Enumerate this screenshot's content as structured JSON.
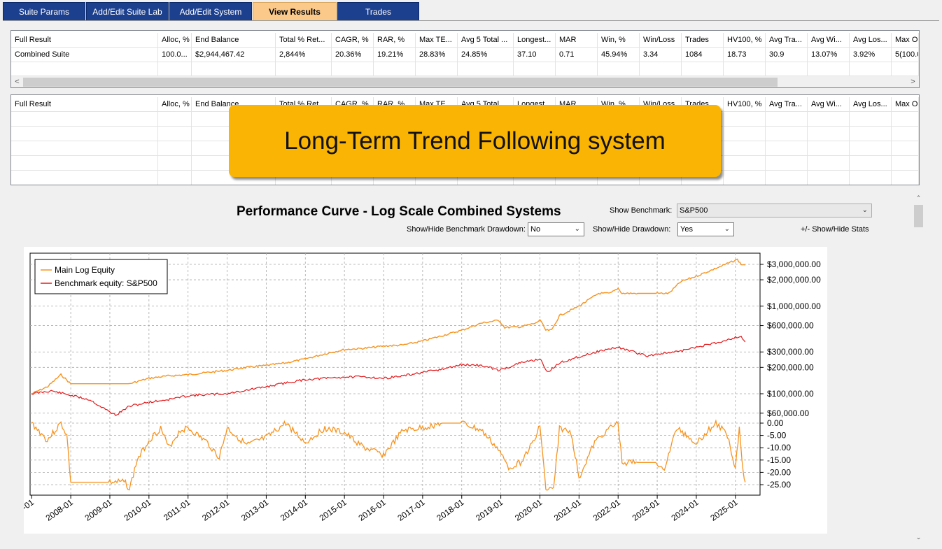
{
  "tabs": [
    {
      "label": "Suite Params"
    },
    {
      "label": "Add/Edit Suite Lab"
    },
    {
      "label": "Add/Edit System"
    },
    {
      "label": "View Results"
    },
    {
      "label": "Trades"
    }
  ],
  "grid1": {
    "headers": [
      "Full Result",
      "Alloc, %",
      "End Balance",
      "Total % Ret...",
      "CAGR, %",
      "RAR, %",
      "Max TE...",
      "Avg 5 Total ...",
      "Longest...",
      "MAR",
      "Win, %",
      "Win/Loss",
      "Trades",
      "HV100, %",
      "Avg Tra...",
      "Avg Wi...",
      "Avg Los...",
      "Max Op"
    ],
    "row": [
      "Combined Suite",
      "100.0...",
      "$2,944,467.42",
      "2,844%",
      "20.36%",
      "19.21%",
      "28.83%",
      "24.85%",
      "37.10",
      "0.71",
      "45.94%",
      "3.34",
      "1084",
      "18.73",
      "30.9",
      "13.07%",
      "3.92%",
      "5(100.0"
    ],
    "scroll_left": "<",
    "scroll_right": ">"
  },
  "grid2": {
    "headers": [
      "Full Result",
      "Alloc, %",
      "End Balance",
      "Total % Ret...",
      "CAGR, %",
      "RAR, %",
      "Max TE...",
      "Avg 5 Total ...",
      "Longest...",
      "MAR",
      "Win, %",
      "Win/Loss",
      "Trades",
      "HV100, %",
      "Avg Tra...",
      "Avg Wi...",
      "Avg Los...",
      "Max Op"
    ]
  },
  "banner": {
    "text": "Long-Term Trend Following system"
  },
  "chart_panel": {
    "title": "Performance Curve - Log Scale Combined Systems",
    "show_benchmark_label": "Show Benchmark:",
    "show_benchmark_value": "S&P500",
    "benchmark_drawdown_label": "Show/Hide Benchmark Drawdown:",
    "benchmark_drawdown_value": "No",
    "drawdown_label": "Show/Hide Drawdown:",
    "drawdown_value": "Yes",
    "stats_toggle": "+/- Show/Hide Stats"
  },
  "colors": {
    "equity": "#f7931e",
    "benchmark": "#e31a1c",
    "drawdown": "#f7931e",
    "tab": "#1c3f8e",
    "tab_active": "#fbc98a",
    "banner": "#f9b404"
  },
  "chart_data": {
    "type": "line",
    "title": "Performance Curve - Log Scale Combined Systems",
    "y_scale": "log",
    "legend_position": "top-left",
    "grid": true,
    "legend": [
      "Main Log Equity",
      "Benchmark equity: S&P500"
    ],
    "x_tick_labels": [
      "-01",
      "2008-01",
      "2009-01",
      "2010-01",
      "2011-01",
      "2012-01",
      "2013-01",
      "2014-01",
      "2015-01",
      "2016-01",
      "2017-01",
      "2018-01",
      "2019-01",
      "2020-01",
      "2021-01",
      "2022-01",
      "2023-01",
      "2024-01",
      "2025-01"
    ],
    "equity_y_ticks": [
      "$3,000,000.00",
      "$2,000,000.00",
      "$1,000,000.00",
      "$600,000.00",
      "$300,000.00",
      "$200,000.00",
      "$100,000.00",
      "$60,000.00"
    ],
    "equity_y_values": [
      3000000,
      2000000,
      1000000,
      600000,
      300000,
      200000,
      100000,
      60000
    ],
    "drawdown_y_ticks": [
      "0.00",
      "-5.00",
      "-10.00",
      "-15.00",
      "-20.00",
      "-25.00"
    ],
    "drawdown_y_values": [
      0,
      -5,
      -10,
      -15,
      -20,
      -25
    ],
    "series": [
      {
        "name": "Main Log Equity",
        "x": [
          2007.0,
          2007.4,
          2007.75,
          2008.0,
          2008.5,
          2009.0,
          2009.5,
          2010.0,
          2010.5,
          2011.0,
          2011.5,
          2012.0,
          2012.5,
          2013.0,
          2013.5,
          2014.0,
          2014.5,
          2015.0,
          2015.5,
          2016.0,
          2016.5,
          2017.0,
          2017.5,
          2018.0,
          2018.5,
          2018.95,
          2019.1,
          2019.5,
          2019.9,
          2020.0,
          2020.15,
          2020.3,
          2020.5,
          2021.0,
          2021.5,
          2021.8,
          2022.0,
          2022.1,
          2022.5,
          2023.0,
          2023.3,
          2023.6,
          2024.0,
          2024.5,
          2024.9,
          2025.05,
          2025.15,
          2025.25
        ],
        "y": [
          100000,
          120000,
          165000,
          130000,
          130000,
          130000,
          130000,
          150000,
          160000,
          165000,
          175000,
          185000,
          200000,
          210000,
          225000,
          250000,
          285000,
          320000,
          330000,
          350000,
          360000,
          400000,
          460000,
          530000,
          640000,
          690000,
          570000,
          580000,
          640000,
          700000,
          530000,
          530000,
          780000,
          1000000,
          1400000,
          1400000,
          1600000,
          1400000,
          1400000,
          1400000,
          1400000,
          1900000,
          2200000,
          2700000,
          3200000,
          3400000,
          3000000,
          2944467
        ]
      },
      {
        "name": "Benchmark equity: S&P500",
        "x": [
          2007.0,
          2007.5,
          2008.0,
          2008.5,
          2008.75,
          2009.0,
          2009.15,
          2009.5,
          2010.0,
          2010.5,
          2011.0,
          2011.5,
          2012.0,
          2012.5,
          2013.0,
          2013.5,
          2014.0,
          2014.5,
          2015.0,
          2015.5,
          2016.0,
          2016.5,
          2017.0,
          2017.5,
          2018.0,
          2018.5,
          2018.97,
          2019.5,
          2020.0,
          2020.2,
          2020.5,
          2021.0,
          2021.5,
          2022.0,
          2022.5,
          2022.75,
          2023.0,
          2023.5,
          2024.0,
          2024.5,
          2025.0,
          2025.15,
          2025.25
        ],
        "y": [
          100000,
          108000,
          96000,
          85000,
          72000,
          62000,
          57000,
          72000,
          80000,
          86000,
          95000,
          98000,
          100000,
          110000,
          120000,
          133000,
          145000,
          150000,
          155000,
          156000,
          150000,
          160000,
          175000,
          190000,
          215000,
          210000,
          185000,
          225000,
          250000,
          175000,
          225000,
          265000,
          305000,
          340000,
          290000,
          270000,
          285000,
          300000,
          340000,
          380000,
          440000,
          450000,
          390000
        ]
      },
      {
        "name": "Drawdown %",
        "x": [
          2007.0,
          2007.4,
          2007.75,
          2007.9,
          2008.0,
          2008.5,
          2009.0,
          2009.4,
          2009.5,
          2009.7,
          2010.0,
          2010.3,
          2010.5,
          2010.8,
          2011.0,
          2011.5,
          2011.8,
          2012.0,
          2012.5,
          2013.0,
          2013.5,
          2014.0,
          2014.5,
          2015.0,
          2015.5,
          2016.0,
          2016.5,
          2017.0,
          2017.5,
          2018.0,
          2018.5,
          2018.9,
          2019.2,
          2019.5,
          2019.9,
          2020.0,
          2020.15,
          2020.35,
          2020.5,
          2020.8,
          2021.0,
          2021.4,
          2021.7,
          2022.0,
          2022.1,
          2022.5,
          2023.0,
          2023.15,
          2023.5,
          2024.0,
          2024.5,
          2024.8,
          2025.0,
          2025.1,
          2025.2,
          2025.25
        ],
        "y": [
          0,
          -7,
          0,
          -5,
          -24,
          -24,
          -24,
          -24,
          -27,
          -15,
          -7,
          -2,
          -10,
          -3,
          -2,
          -8,
          -14,
          -2,
          -9,
          -6,
          0,
          -8,
          -2,
          -4,
          -10,
          -13,
          -3,
          -2,
          0,
          0,
          -3,
          -10,
          -18,
          -16,
          -6,
          0,
          -27,
          -27,
          -2,
          -4,
          -22,
          -8,
          -3,
          0,
          -16,
          -16,
          -16,
          -20,
          -2,
          -8,
          0,
          -5,
          -18,
          -2,
          -20,
          -24
        ]
      }
    ]
  }
}
